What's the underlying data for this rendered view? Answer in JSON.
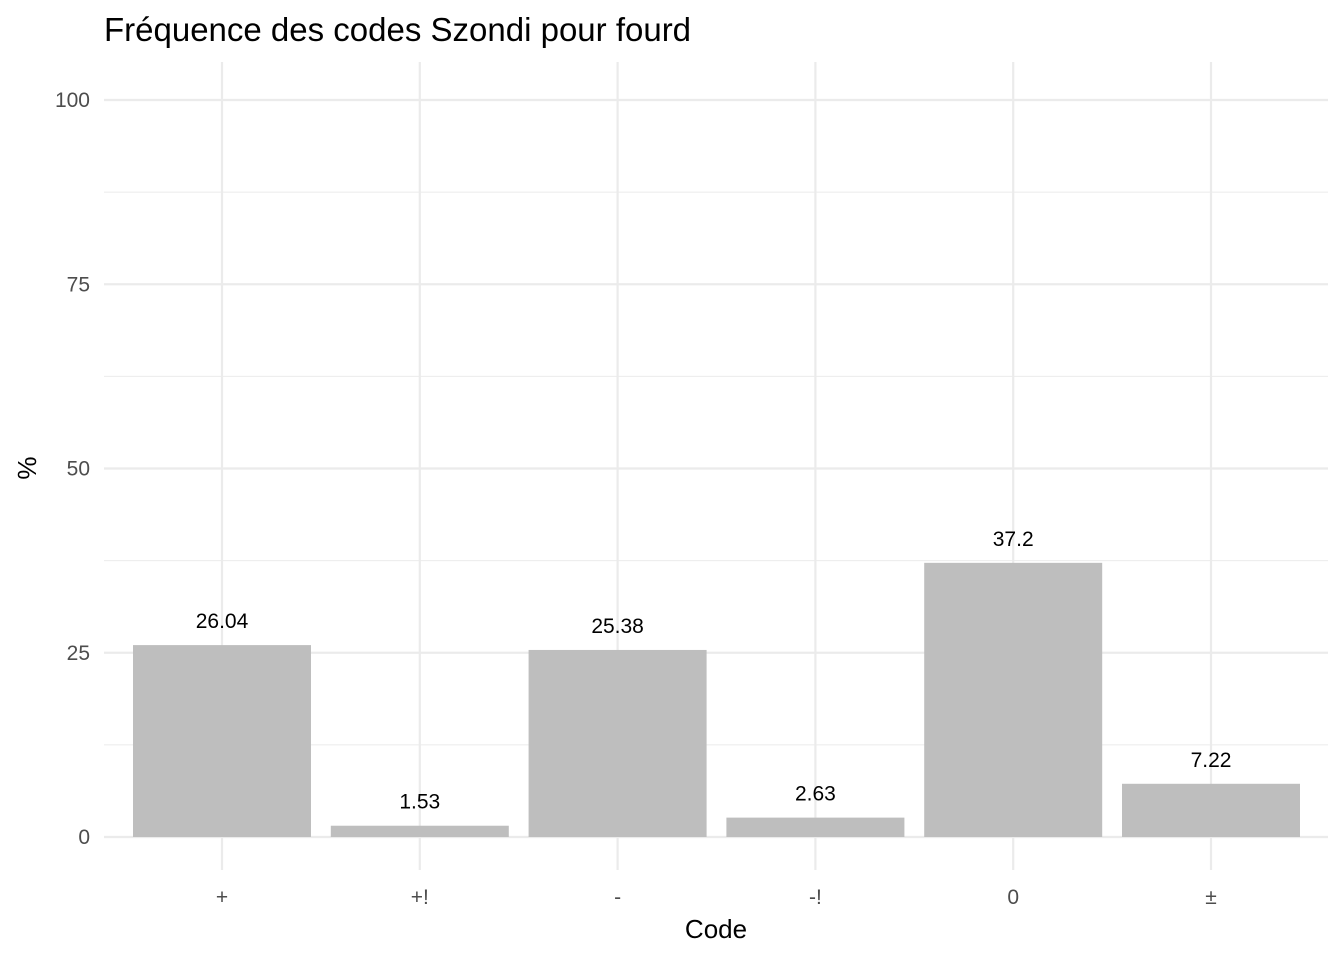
{
  "chart_data": {
    "type": "bar",
    "title": "Fréquence des codes Szondi pour fourd",
    "xlabel": "Code",
    "ylabel": "%",
    "categories": [
      "+",
      "+!",
      "-",
      "-!",
      "0",
      "±"
    ],
    "values": [
      26.04,
      1.53,
      25.38,
      2.63,
      37.2,
      7.22
    ],
    "value_labels": [
      "26.04",
      "1.53",
      "25.38",
      "2.63",
      "37.2",
      "7.22"
    ],
    "ylim": [
      0,
      100
    ],
    "yticks": [
      0,
      25,
      50,
      75,
      100
    ],
    "ytick_labels": [
      "0",
      "25",
      "50",
      "75",
      "100"
    ],
    "grid": true,
    "legend": "none",
    "bar_color": "#bebebe"
  }
}
